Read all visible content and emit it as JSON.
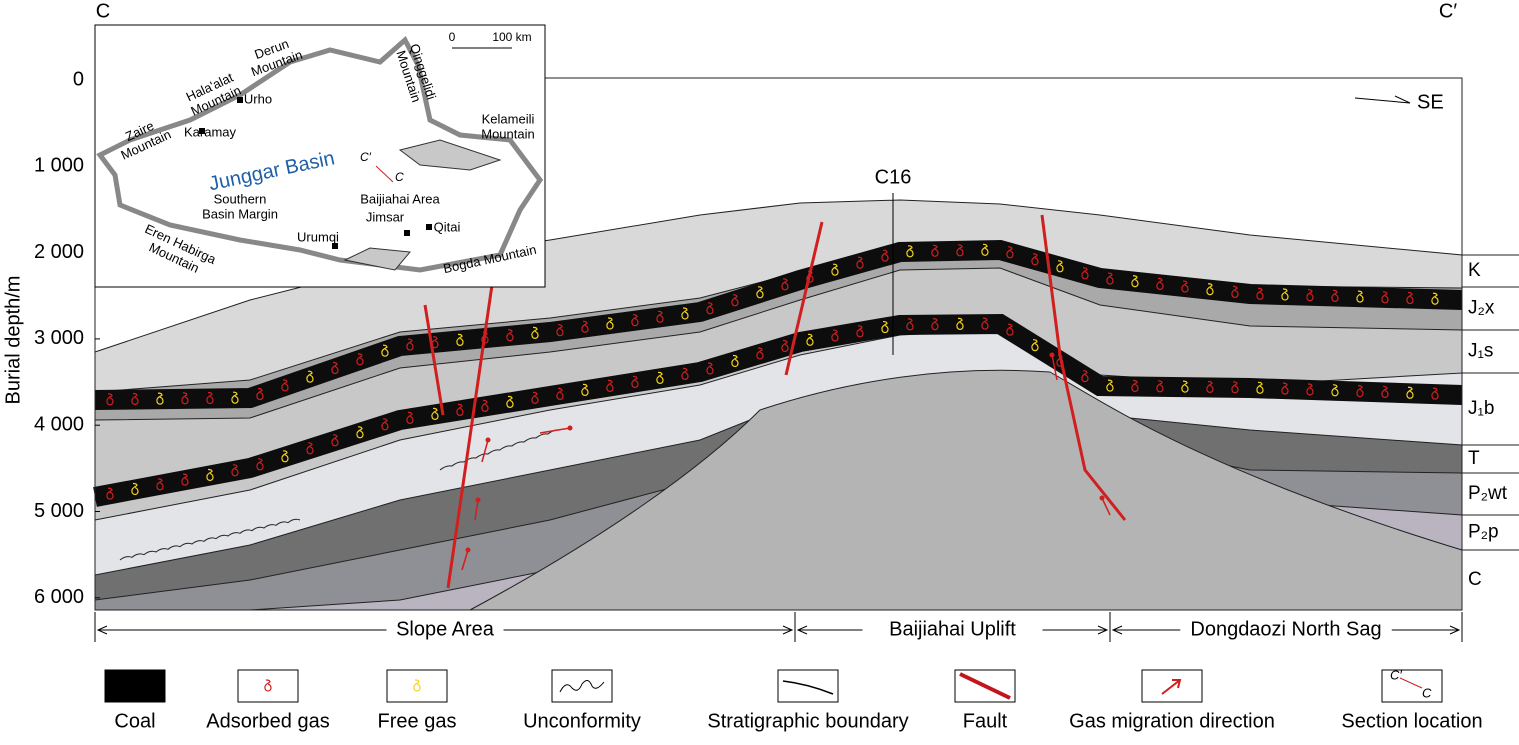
{
  "section": {
    "left": "C",
    "right": "C′"
  },
  "axis": {
    "title": "Burial depth/m",
    "ticks": [
      "0",
      "1 000",
      "2 000",
      "3 000",
      "4 000",
      "5 000",
      "6 000"
    ]
  },
  "well": "C16",
  "direction": "SE",
  "formations": [
    "K",
    "J₂x",
    "J₁s",
    "J₁b",
    "T",
    "P₂wt",
    "P₂p",
    "C"
  ],
  "zones": [
    "Slope Area",
    "Baijiahai Uplift",
    "Dongdaozi North Sag"
  ],
  "legend": [
    "Coal",
    "Adsorbed gas",
    "Free gas",
    "Unconformity",
    "Stratigraphic boundary",
    "Fault",
    "Gas migration direction",
    "Section location"
  ],
  "inset": {
    "title": "Junggar Basin",
    "scale": [
      "0",
      "100 km"
    ],
    "labels": [
      [
        "Zaire",
        "Mountain"
      ],
      [
        "Hala'alat",
        "Mountain"
      ],
      [
        "Derun",
        "Mountain"
      ],
      [
        "Qinggelidi",
        "Mountain"
      ],
      [
        "Kelameili",
        "Mountain"
      ],
      [
        "Urho"
      ],
      [
        "Karamay"
      ],
      [
        "Baijiahai Area"
      ],
      [
        "Southern",
        "Basin Margin"
      ],
      [
        "Jimsar"
      ],
      [
        "Qitai"
      ],
      [
        "Urumqi"
      ],
      [
        "Eren Habirga",
        "Mountain"
      ],
      [
        "Bogda Mountain"
      ]
    ],
    "section": [
      "C′",
      "C"
    ]
  }
}
